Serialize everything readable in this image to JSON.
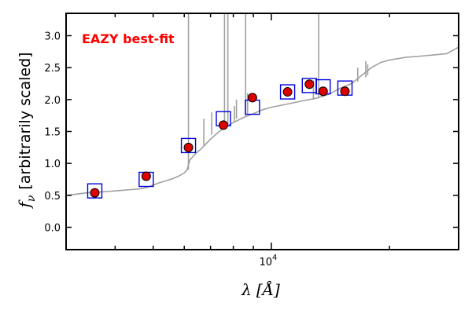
{
  "chart_data": {
    "type": "scatter",
    "title": "",
    "annotation": "EAZY best-fit",
    "ylabel": "[arbitrarily scaled]",
    "ylabel_symbol": "f",
    "ylabel_sub": "ν",
    "xlabel_symbol": "λ",
    "xlabel_unit": "[Å]",
    "xscale": "log",
    "xlim": [
      3000,
      30000
    ],
    "ylim": [
      -0.35,
      3.35
    ],
    "yticks": [
      0.0,
      0.5,
      1.0,
      1.5,
      2.0,
      2.5,
      3.0
    ],
    "ytick_labels": [
      "0.0",
      "0.5",
      "1.0",
      "1.5",
      "2.0",
      "2.5",
      "3.0"
    ],
    "xticks_major": [
      10000
    ],
    "xtick_major_labels": [
      "10"
    ],
    "xtick_major_exponent": "4",
    "xticks_minor": [
      4000,
      5000,
      6000,
      7000,
      8000,
      9000,
      20000,
      30000
    ],
    "series": [
      {
        "name": "EAZY best-fit template",
        "kind": "line",
        "color": "#a0a0a0",
        "x": [
          3000,
          3200,
          3400,
          3600,
          3800,
          4000,
          4200,
          4400,
          4600,
          4800,
          5000,
          5200,
          5400,
          5600,
          5800,
          6000,
          6100,
          6200,
          6400,
          6600,
          6800,
          7000,
          7300,
          7600,
          8000,
          8500,
          9000,
          9500,
          10000,
          11000,
          12000,
          13000,
          14000,
          15000,
          16000,
          17000,
          18000,
          19000,
          20000,
          22000,
          24000,
          26000,
          28000,
          30000
        ],
        "y": [
          0.5,
          0.52,
          0.54,
          0.55,
          0.56,
          0.57,
          0.58,
          0.59,
          0.6,
          0.62,
          0.66,
          0.7,
          0.73,
          0.76,
          0.8,
          0.85,
          0.9,
          1.05,
          1.15,
          1.22,
          1.3,
          1.38,
          1.48,
          1.56,
          1.64,
          1.72,
          1.78,
          1.84,
          1.88,
          1.93,
          1.98,
          2.02,
          2.08,
          2.18,
          2.25,
          2.38,
          2.5,
          2.58,
          2.62,
          2.66,
          2.68,
          2.7,
          2.72,
          2.82
        ]
      },
      {
        "name": "Emission lines",
        "kind": "spikes",
        "color": "#a0a0a0",
        "x": [
          6150,
          6730,
          7050,
          7600,
          7750,
          8050,
          8150,
          8600,
          8700,
          12800,
          13200,
          16600,
          17400,
          17600
        ],
        "base": [
          0.9,
          1.28,
          1.45,
          1.55,
          1.6,
          1.65,
          1.7,
          1.75,
          1.78,
          2.0,
          2.02,
          2.28,
          2.35,
          2.38
        ],
        "top": [
          3.4,
          1.7,
          1.8,
          3.4,
          3.4,
          1.9,
          2.0,
          3.4,
          2.1,
          2.3,
          3.4,
          2.5,
          2.6,
          2.55
        ]
      },
      {
        "name": "Model photometry",
        "kind": "square",
        "color": "#0000dd",
        "x": [
          3550,
          4800,
          6150,
          7550,
          8950,
          11000,
          12500,
          13550,
          15400
        ],
        "y": [
          0.57,
          0.75,
          1.28,
          1.7,
          1.88,
          2.12,
          2.22,
          2.2,
          2.18
        ]
      },
      {
        "name": "Observed photometry",
        "kind": "point",
        "color": "#dd0000",
        "x": [
          3550,
          4800,
          6150,
          7550,
          8950,
          11000,
          12500,
          13550,
          15400
        ],
        "y": [
          0.54,
          0.8,
          1.25,
          1.6,
          2.03,
          2.12,
          2.24,
          2.13,
          2.13
        ]
      }
    ],
    "colors": {
      "annotation": "#ff0000",
      "axes": "#000000"
    }
  }
}
